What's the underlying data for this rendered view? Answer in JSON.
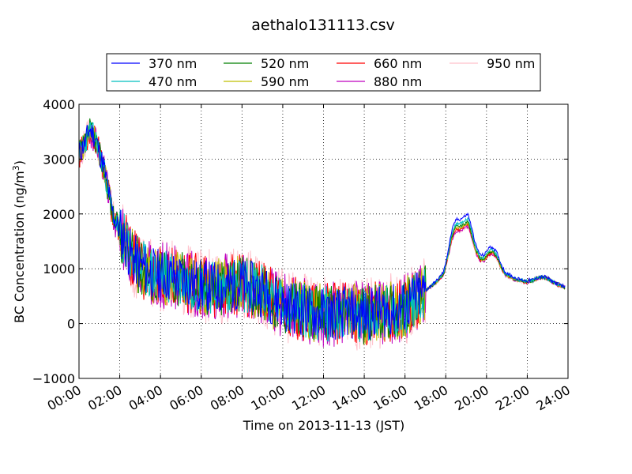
{
  "chart_data": {
    "type": "line",
    "title": "aethalo131113.csv",
    "xlabel": "Time on 2013-11-13 (JST)",
    "ylabel_main": "BC Concentration (ng/m",
    "ylabel_sup": "3",
    "ylabel_close": ")",
    "xlim": [
      "00:00",
      "24:00"
    ],
    "ylim": [
      -1000,
      4000
    ],
    "x_ticks": [
      "00:00",
      "02:00",
      "04:00",
      "06:00",
      "08:00",
      "10:00",
      "12:00",
      "14:00",
      "16:00",
      "18:00",
      "20:00",
      "22:00",
      "24:00"
    ],
    "y_ticks": [
      "4000",
      "3000",
      "2000",
      "1000",
      "0",
      "−1000"
    ],
    "grid": true,
    "legend_position": "top",
    "series_x_hours": [
      0.0,
      0.3,
      0.5,
      0.7,
      0.9,
      1.0,
      1.2,
      1.4,
      1.6,
      1.8,
      2.0,
      2.3,
      2.6,
      3.0,
      3.4,
      3.8,
      4.2,
      4.6,
      5.0,
      5.5,
      6.0,
      6.5,
      7.0,
      7.5,
      8.0,
      8.5,
      9.0,
      9.5,
      10.0,
      10.5,
      11.0,
      11.5,
      12.0,
      12.5,
      13.0,
      13.5,
      14.0,
      14.5,
      15.0,
      15.5,
      16.0,
      16.5,
      17.0,
      17.3,
      17.6,
      17.9,
      18.1,
      18.3,
      18.5,
      18.7,
      18.9,
      19.1,
      19.3,
      19.5,
      19.7,
      19.9,
      20.1,
      20.3,
      20.5,
      20.7,
      20.9,
      21.1,
      21.3,
      21.5,
      21.7,
      22.0,
      22.3,
      22.6,
      22.9,
      23.2,
      23.5,
      23.7,
      23.9
    ],
    "series": [
      {
        "name": "370 nm",
        "color": "#0000ff",
        "scale": 1.0,
        "noise": 220,
        "seed": 11,
        "hump": [
          0,
          0,
          0,
          0,
          0,
          0,
          0,
          0,
          0,
          0,
          0,
          0,
          0,
          0,
          0,
          0,
          0,
          0,
          0,
          0,
          0,
          0,
          0,
          0,
          0,
          0,
          0,
          0,
          0,
          0,
          0,
          0,
          0,
          0,
          0,
          0,
          0,
          0,
          0,
          0,
          0,
          0,
          0,
          0,
          0,
          0,
          0,
          0,
          0,
          0,
          0,
          0,
          0,
          0,
          0,
          0,
          0,
          0,
          0,
          0,
          0,
          0,
          0,
          0,
          0,
          0,
          0,
          0,
          0,
          0,
          0,
          0,
          0
        ]
      },
      {
        "name": "470 nm",
        "color": "#00bfbf",
        "scale": 0.94,
        "noise": 230,
        "seed": 23
      },
      {
        "name": "520 nm",
        "color": "#007f00",
        "scale": 0.9,
        "noise": 240,
        "seed": 37
      },
      {
        "name": "590 nm",
        "color": "#bfbf00",
        "scale": 0.88,
        "noise": 250,
        "seed": 41
      },
      {
        "name": "660 nm",
        "color": "#ff0000",
        "scale": 0.86,
        "noise": 260,
        "seed": 53
      },
      {
        "name": "880 nm",
        "color": "#bf00bf",
        "scale": 0.84,
        "noise": 280,
        "seed": 67
      },
      {
        "name": "950 nm",
        "color": "#ffc0cb",
        "scale": 0.83,
        "noise": 310,
        "seed": 79
      }
    ],
    "base_values": [
      3100,
      3300,
      3550,
      3450,
      3300,
      3100,
      2900,
      2500,
      2100,
      1850,
      1700,
      1450,
      1200,
      1050,
      950,
      900,
      880,
      850,
      800,
      750,
      700,
      680,
      650,
      700,
      720,
      650,
      600,
      450,
      350,
      300,
      250,
      200,
      180,
      170,
      200,
      180,
      150,
      200,
      220,
      250,
      300,
      450,
      600,
      700,
      800,
      950,
      1300,
      1700,
      1900,
      1900,
      1950,
      2000,
      1700,
      1400,
      1250,
      1250,
      1380,
      1400,
      1300,
      1100,
      950,
      900,
      850,
      820,
      800,
      780,
      800,
      850,
      850,
      780,
      720,
      700,
      650
    ]
  }
}
